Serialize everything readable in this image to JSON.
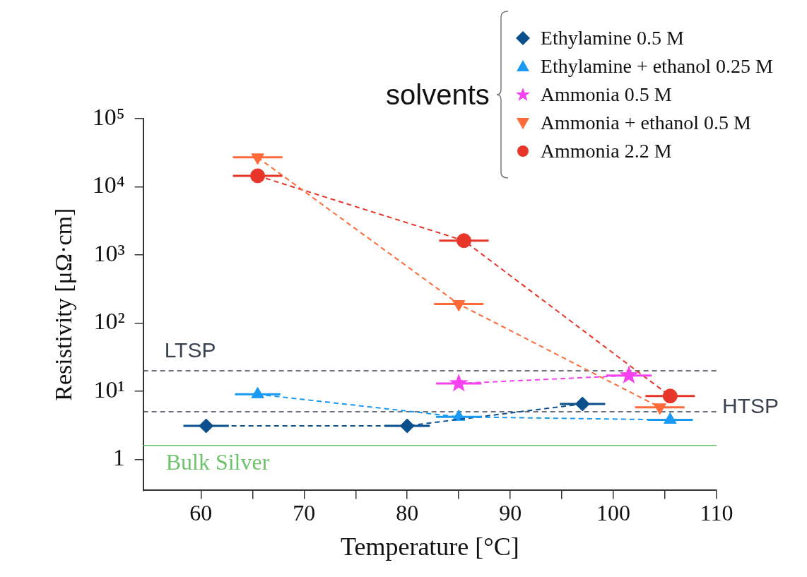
{
  "chart_data": {
    "type": "line",
    "xlabel": "Temperature [°C]",
    "ylabel": "Resistivity [μΩ·cm]",
    "legend_title": "solvents",
    "legend": "top right",
    "log": "y",
    "grid": false,
    "line_style": "dashed",
    "xlim": [
      54.4,
      110
    ],
    "xticks": [
      60,
      {
        "value": 65,
        "label": null
      },
      70,
      {
        "value": 75,
        "label": null
      },
      80,
      {
        "value": 85,
        "label": null
      },
      90,
      {
        "value": 95,
        "label": null
      },
      100,
      {
        "value": 105,
        "label": null
      },
      110
    ],
    "ylim": [
      0.35,
      100000
    ],
    "yticks": [
      1,
      {
        "value": 10,
        "label": "10¹"
      },
      {
        "value": 100,
        "label": "10²"
      },
      {
        "value": 1000,
        "label": "10³"
      },
      {
        "value": 10000,
        "label": "10⁴"
      },
      {
        "value": 100000,
        "label": "10⁵"
      }
    ],
    "series": [
      {
        "name": "Ethylamine 0.5 M",
        "color": "#0b4f8c",
        "marker": "diamond",
        "x": [
          60.5,
          80,
          97
        ],
        "values": [
          3.1,
          3.1,
          6.5
        ],
        "xerrors": [
          2.2,
          2.2,
          2.2
        ]
      },
      {
        "name": "Ethylamine + ethanol 0.25 M",
        "color": "#1a9af2",
        "marker": "triangle",
        "x": [
          65.5,
          85,
          105.5
        ],
        "values": [
          9,
          4.2,
          3.8
        ],
        "xerrors": [
          2.2,
          2.2,
          2.2
        ]
      },
      {
        "name": "Ammonia 0.5 M",
        "color": "#f542ee",
        "marker": "star",
        "x": [
          85,
          101.5
        ],
        "values": [
          13,
          17
        ],
        "xerrors": [
          2.2,
          2.2
        ]
      },
      {
        "name": "Ammonia + ethanol 0.5 M",
        "color": "#ff6a38",
        "marker": "triangle_down",
        "x": [
          65.5,
          85,
          104.5
        ],
        "values": [
          27000,
          190,
          5.8
        ],
        "xerrors": [
          2.4,
          2.4,
          2.4
        ]
      },
      {
        "name": "Ammonia 2.2 M",
        "color": "#e8352a",
        "marker": "circle",
        "x": [
          65.5,
          85.5,
          105.5
        ],
        "values": [
          14500,
          1620,
          8.5
        ],
        "xerrors": [
          2.4,
          2.4,
          2.4
        ]
      }
    ],
    "ref_lines": [
      {
        "axis": "y",
        "value": 20,
        "label": "LTSP",
        "color": "#3a4250",
        "line_style": "dashed"
      },
      {
        "axis": "y",
        "value": 5,
        "label": "HTSP",
        "color": "#3a4250",
        "line_style": "dashed"
      },
      {
        "axis": "y",
        "value": 1.6,
        "label": "Bulk Silver",
        "color": "#6cc36c",
        "line_style": "solid"
      }
    ]
  }
}
